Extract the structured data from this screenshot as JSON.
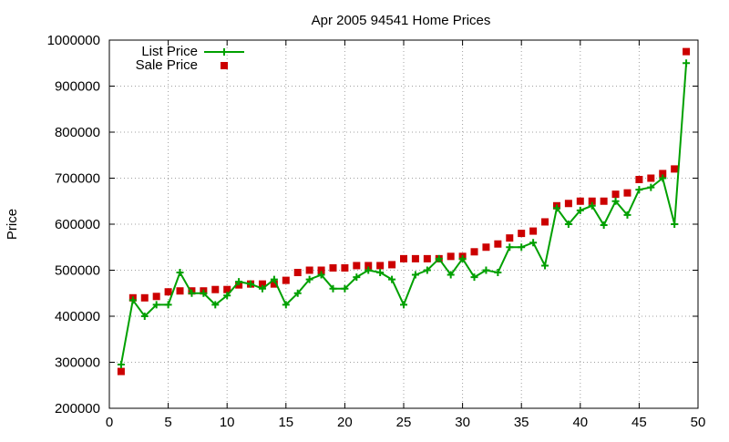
{
  "chart_data": {
    "type": "line",
    "title": "Apr 2005 94541 Home Prices",
    "xlabel": "",
    "ylabel": "Price",
    "xlim": [
      0,
      50
    ],
    "ylim": [
      200000,
      1000000
    ],
    "x_ticks": [
      0,
      5,
      10,
      15,
      20,
      25,
      30,
      35,
      40,
      45,
      50
    ],
    "y_ticks": [
      200000,
      300000,
      400000,
      500000,
      600000,
      700000,
      800000,
      900000,
      1000000
    ],
    "grid": true,
    "legend_position": "top-left",
    "x": [
      1,
      2,
      3,
      4,
      5,
      6,
      7,
      8,
      9,
      10,
      11,
      12,
      13,
      14,
      15,
      16,
      17,
      18,
      19,
      20,
      21,
      22,
      23,
      24,
      25,
      26,
      27,
      28,
      29,
      30,
      31,
      32,
      33,
      34,
      35,
      36,
      37,
      38,
      39,
      40,
      41,
      42,
      43,
      44,
      45,
      46,
      47,
      48,
      49
    ],
    "series": [
      {
        "name": "List Price",
        "style": "line-plus",
        "color": "#00a000",
        "values": [
          295000,
          435000,
          400000,
          425000,
          425000,
          495000,
          450000,
          450000,
          425000,
          445000,
          475000,
          470000,
          460000,
          480000,
          425000,
          450000,
          480000,
          490000,
          460000,
          460000,
          485000,
          500000,
          495000,
          480000,
          425000,
          490000,
          500000,
          525000,
          490000,
          525000,
          485000,
          500000,
          495000,
          550000,
          550000,
          560000,
          510000,
          635000,
          600000,
          630000,
          640000,
          598000,
          650000,
          620000,
          675000,
          680000,
          700000,
          600000,
          950000
        ]
      },
      {
        "name": "Sale Price",
        "style": "points-square",
        "color": "#cc0000",
        "values": [
          280000,
          440000,
          440000,
          443000,
          453000,
          455000,
          455000,
          455000,
          458000,
          458000,
          468000,
          470000,
          470000,
          470000,
          478000,
          495000,
          500000,
          500000,
          505000,
          505000,
          510000,
          510000,
          510000,
          512000,
          525000,
          525000,
          525000,
          525000,
          530000,
          530000,
          540000,
          550000,
          557000,
          570000,
          580000,
          585000,
          605000,
          640000,
          645000,
          650000,
          650000,
          650000,
          665000,
          668000,
          697000,
          700000,
          710000,
          720000,
          975000
        ]
      }
    ]
  }
}
